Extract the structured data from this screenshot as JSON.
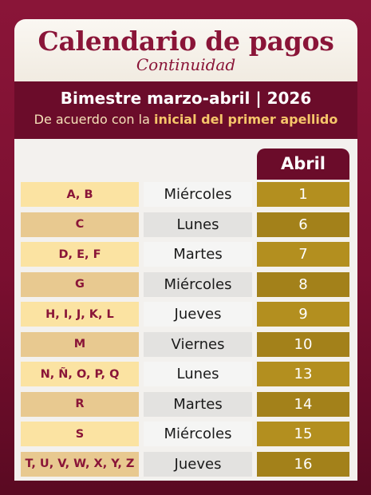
{
  "header": {
    "title": "Calendario de pagos",
    "subtitle": "Continuidad"
  },
  "band": {
    "title": "Bimestre marzo-abril | 2026",
    "sub_prefix": "De acuerdo con la ",
    "sub_highlight": "inicial del primer apellido"
  },
  "table": {
    "month": "Abril",
    "rows": [
      {
        "letters": "A, B",
        "day": "Miércoles",
        "date": "1"
      },
      {
        "letters": "C",
        "day": "Lunes",
        "date": "6"
      },
      {
        "letters": "D, E, F",
        "day": "Martes",
        "date": "7"
      },
      {
        "letters": "G",
        "day": "Miércoles",
        "date": "8"
      },
      {
        "letters": "H, I, J, K, L",
        "day": "Jueves",
        "date": "9"
      },
      {
        "letters": "M",
        "day": "Viernes",
        "date": "10"
      },
      {
        "letters": "N, Ñ, O, P, Q",
        "day": "Lunes",
        "date": "13"
      },
      {
        "letters": "R",
        "day": "Martes",
        "date": "14"
      },
      {
        "letters": "S",
        "day": "Miércoles",
        "date": "15"
      },
      {
        "letters": "T, U, V, W, X, Y, Z",
        "day": "Jueves",
        "date": "16"
      }
    ]
  },
  "colors": {
    "brand": "#8a1538",
    "band": "#6b0c2a",
    "gold": "#b38f1f",
    "highlight": "#f6c56a"
  }
}
